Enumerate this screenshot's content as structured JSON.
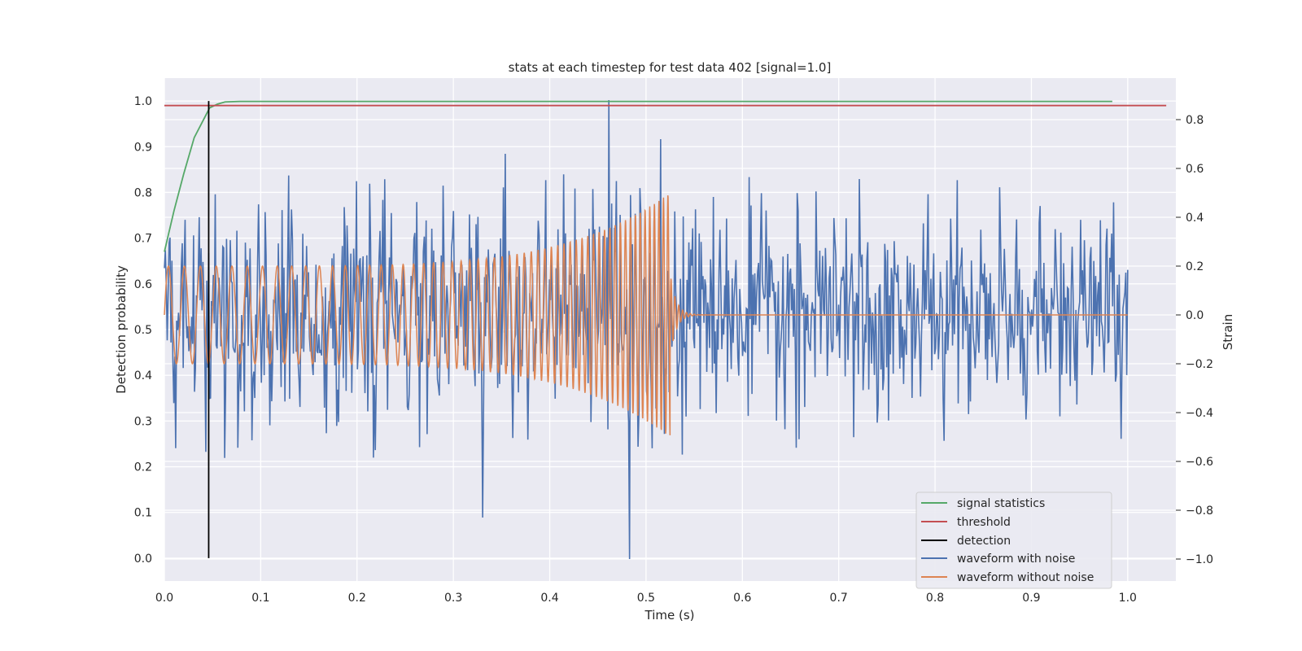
{
  "chart_data": {
    "type": "line",
    "title": "stats at each timestep for test data 402 [signal=1.0]",
    "xlabel": "Time (s)",
    "ylabel": "Detection probability",
    "y2label": "Strain",
    "xlim": [
      0.0,
      1.05
    ],
    "ylim": [
      -0.05,
      1.05
    ],
    "y2lim": [
      -1.09,
      0.97
    ],
    "xticks": [
      "0.0",
      "0.1",
      "0.2",
      "0.3",
      "0.4",
      "0.5",
      "0.6",
      "0.7",
      "0.8",
      "0.9",
      "1.0"
    ],
    "yticks": [
      "0.0",
      "0.1",
      "0.2",
      "0.3",
      "0.4",
      "0.5",
      "0.6",
      "0.7",
      "0.8",
      "0.9",
      "1.0"
    ],
    "y2ticks": [
      "−1.0",
      "−0.8",
      "−0.6",
      "−0.4",
      "−0.2",
      "0.0",
      "0.2",
      "0.4",
      "0.6",
      "0.8"
    ],
    "grid": true,
    "legend_position": "lower-right",
    "background": "#eaeaf2",
    "colors": {
      "signal_statistics": "#55a868",
      "threshold": "#c44e52",
      "detection": "#000000",
      "waveform_with_noise": "#4c72b0",
      "waveform_without_noise": "#dd8452"
    },
    "signal_statistics": {
      "axis": "left",
      "x": [
        0.0,
        0.01,
        0.02,
        0.031,
        0.047,
        0.055,
        0.063,
        0.078,
        0.1,
        0.3,
        0.6,
        0.9,
        0.984
      ],
      "y": [
        0.67,
        0.76,
        0.84,
        0.92,
        0.985,
        0.993,
        0.998,
        0.999,
        0.999,
        0.999,
        0.999,
        0.999,
        0.999
      ]
    },
    "threshold": {
      "axis": "left",
      "value": 0.99,
      "x": [
        0.0,
        1.04
      ]
    },
    "detection": {
      "axis": "left",
      "x": 0.046,
      "y": [
        0.0,
        1.0
      ]
    },
    "waveform_with_noise": {
      "axis": "right",
      "x_range": [
        0.0,
        1.0
      ],
      "n_points": 1024,
      "sigma": 0.2,
      "min": -1.0,
      "max": 0.88,
      "extremes": [
        {
          "x": 0.461,
          "y": 0.88
        },
        {
          "x": 0.483,
          "y": -1.0
        },
        {
          "x": 0.33,
          "y": -0.83
        },
        {
          "x": 0.354,
          "y": 0.66
        },
        {
          "x": 0.515,
          "y": 0.72
        }
      ]
    },
    "waveform_without_noise": {
      "axis": "right",
      "x_range": [
        0.0,
        1.0
      ],
      "merger_time": 0.525,
      "amplitude_start": 0.2,
      "amplitude_peak": 0.5,
      "freq_start_hz": 60,
      "freq_peak_hz": 220
    },
    "legend": [
      {
        "label": "signal statistics",
        "key": "signal_statistics"
      },
      {
        "label": "threshold",
        "key": "threshold"
      },
      {
        "label": "detection",
        "key": "detection"
      },
      {
        "label": "waveform with noise",
        "key": "waveform_with_noise"
      },
      {
        "label": "waveform without noise",
        "key": "waveform_without_noise"
      }
    ]
  }
}
